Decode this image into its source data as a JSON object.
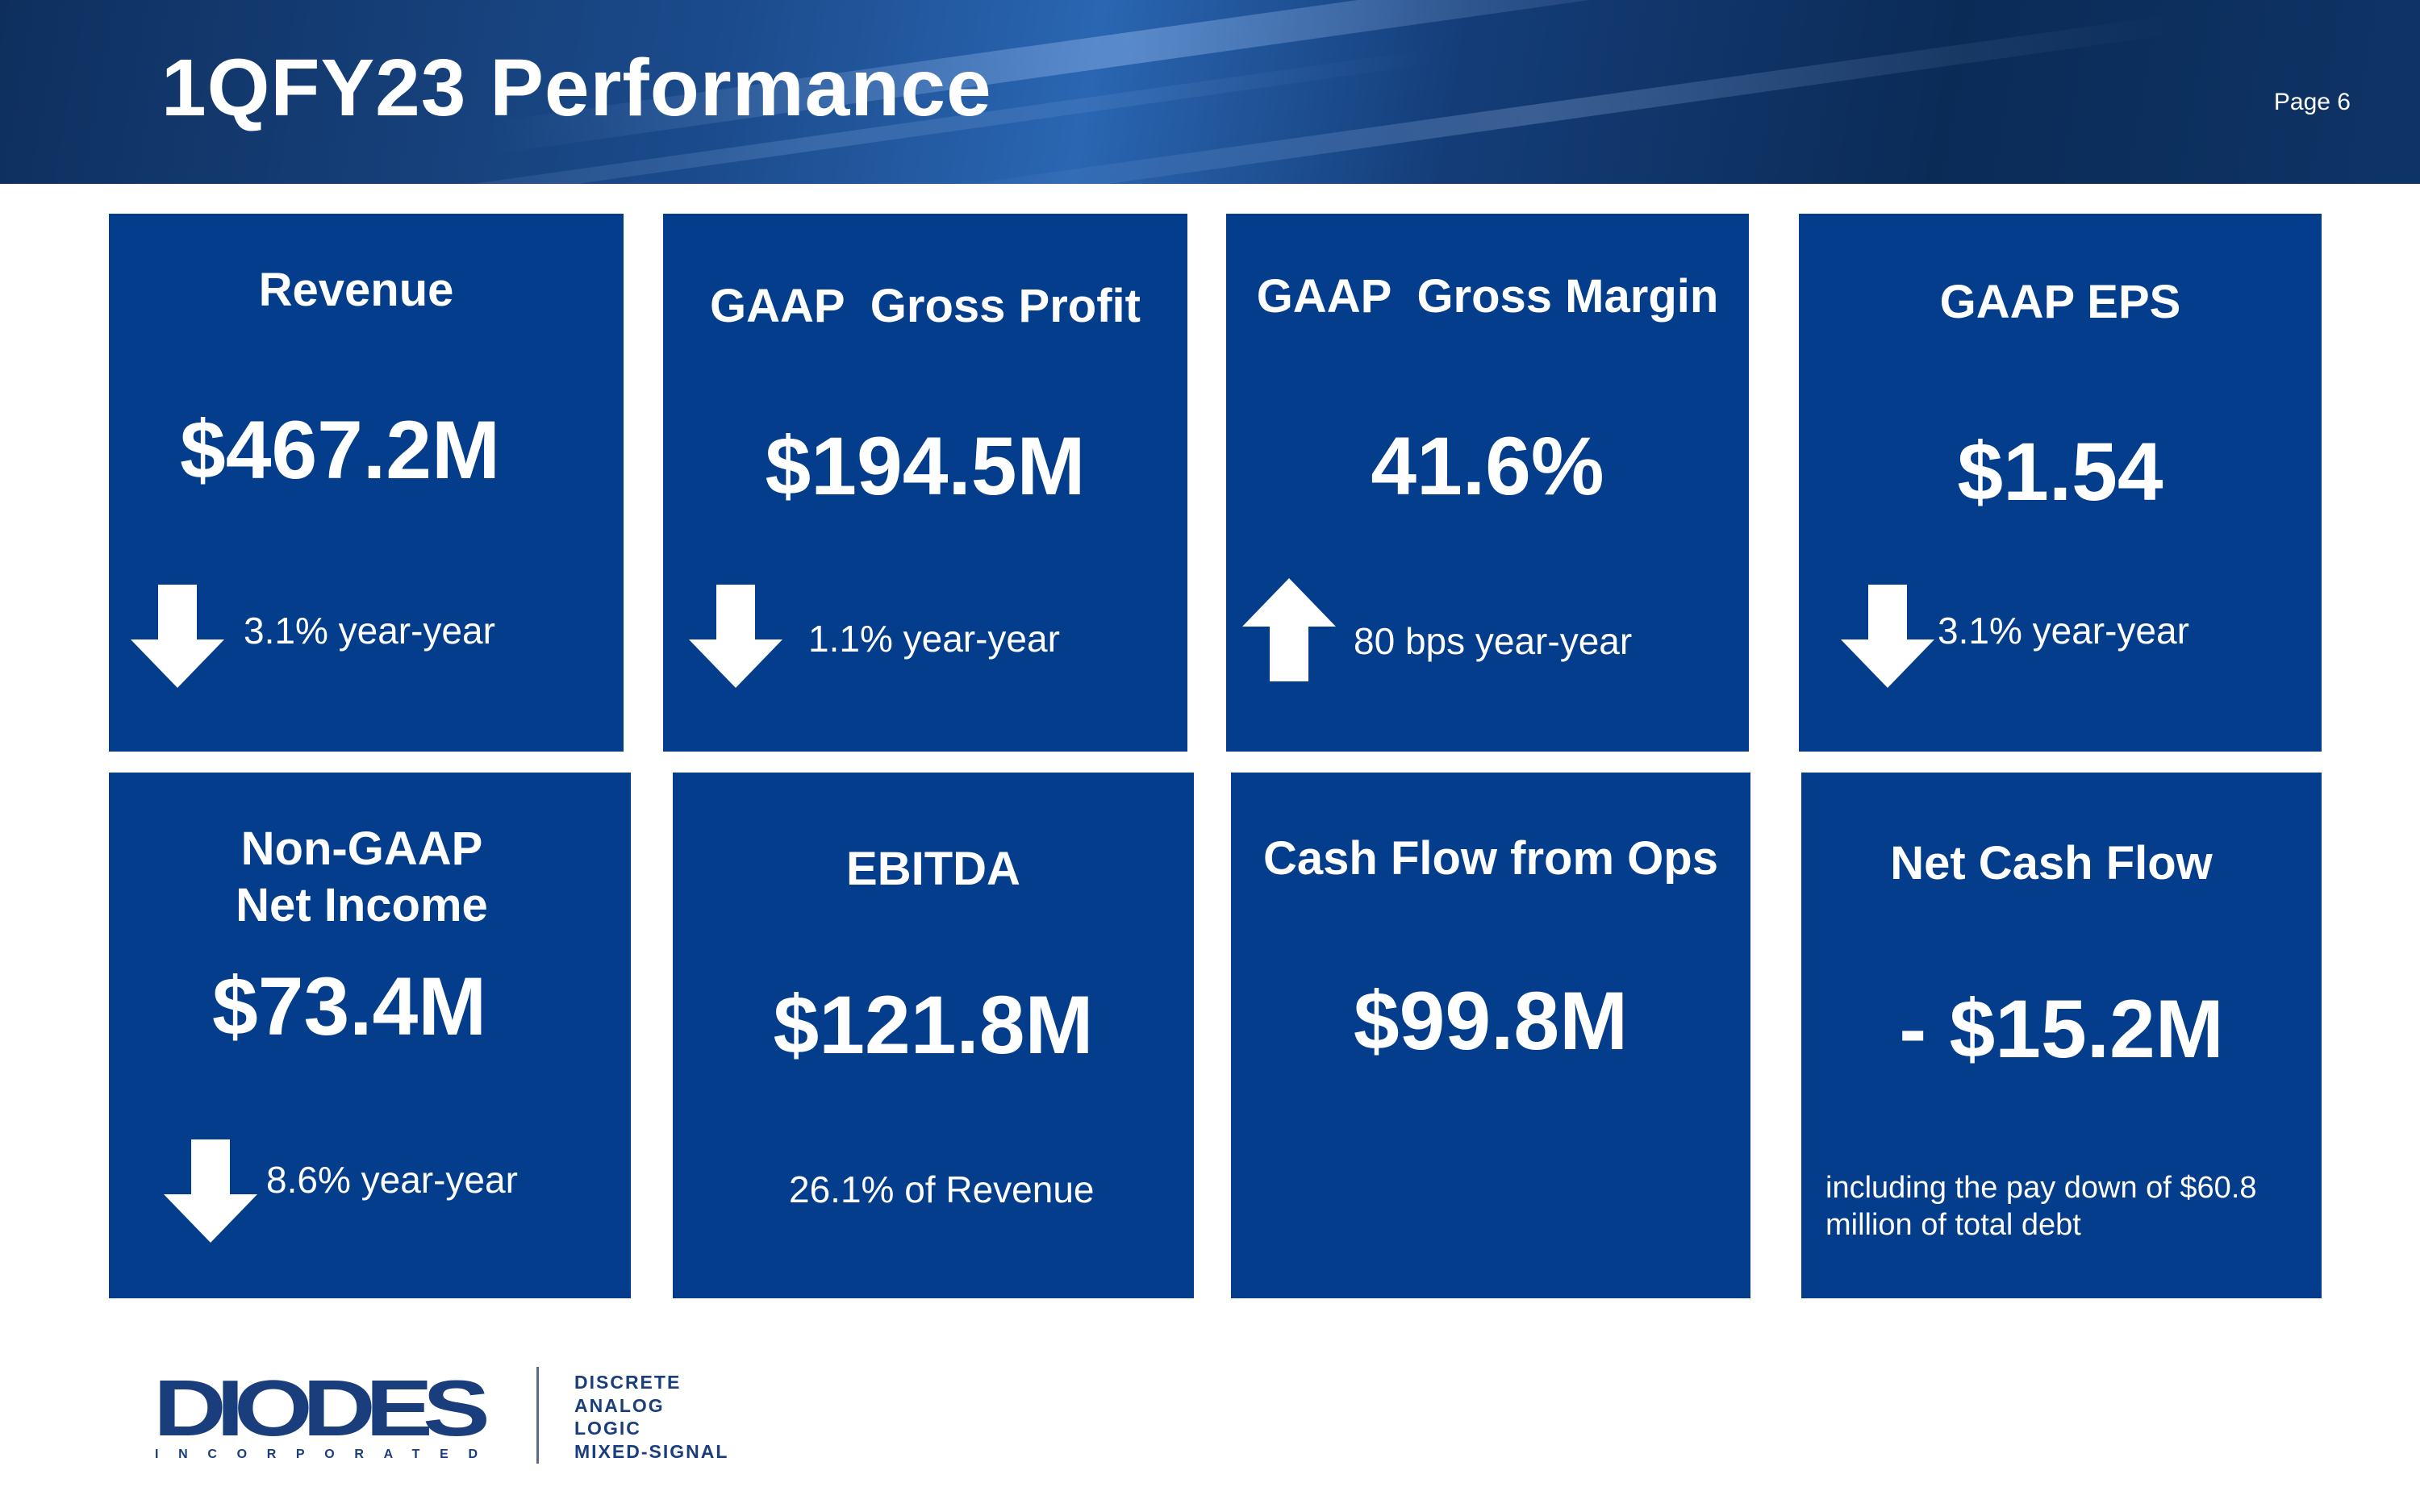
{
  "header": {
    "title": "1QFY23 Performance",
    "page": "Page 6"
  },
  "tiles": [
    {
      "label": "Revenue",
      "value": "$467.2M",
      "delta": "3.1% year-year",
      "direction": "down"
    },
    {
      "label": "GAAP  Gross Profit",
      "value": "$194.5M",
      "delta": "1.1% year-year",
      "direction": "down"
    },
    {
      "label": "GAAP  Gross Margin",
      "value": "41.6%",
      "delta": "80 bps year-year",
      "direction": "up"
    },
    {
      "label": "GAAP EPS",
      "value": "$1.54",
      "delta": "3.1% year-year",
      "direction": "down"
    },
    {
      "label_line1": "Non-GAAP",
      "label_line2": "Net Income",
      "value": "$73.4M",
      "delta": "8.6% year-year",
      "direction": "down"
    },
    {
      "label": "EBITDA",
      "value": "$121.8M",
      "note": "26.1% of Revenue"
    },
    {
      "label": "Cash Flow from Ops",
      "value": "$99.8M"
    },
    {
      "label": "Net Cash Flow",
      "value": "- $15.2M",
      "note_line1": "including the pay down of $60.8",
      "note_line2": "million of total debt"
    }
  ],
  "footer": {
    "logo_text": "DIODES",
    "logo_subtext": "INCORPORATED",
    "tagline": [
      "DISCRETE",
      "ANALOG",
      "LOGIC",
      "MIXED-SIGNAL"
    ]
  },
  "colors": {
    "tile": "#043d8b",
    "header": "#0e2f5e",
    "logo": "#1a3d7c"
  }
}
